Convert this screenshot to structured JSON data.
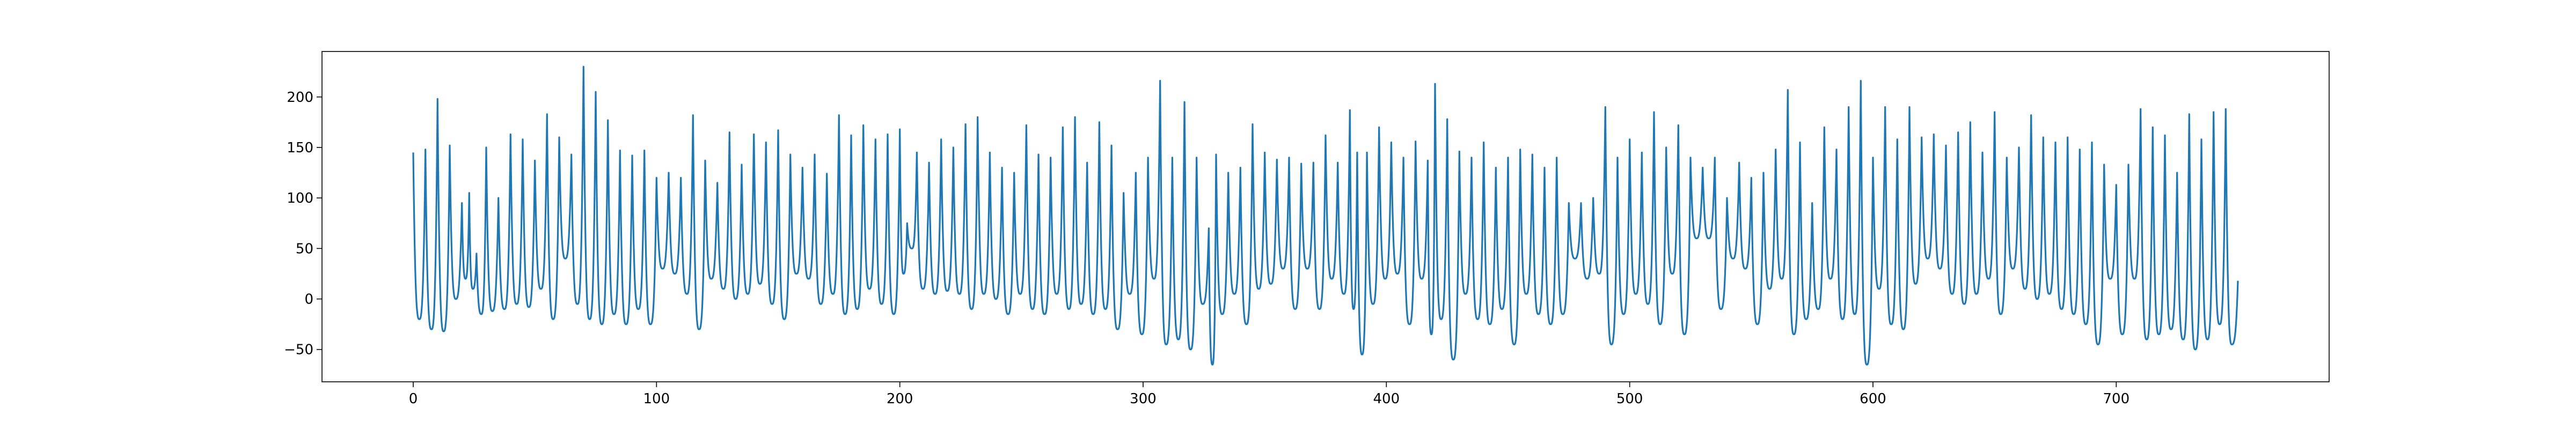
{
  "chart_data": {
    "type": "line",
    "title": "",
    "xlabel": "",
    "ylabel": "",
    "xlim": [
      -37.5,
      787.5
    ],
    "ylim": [
      -82,
      245
    ],
    "x_ticks": [
      0,
      100,
      200,
      300,
      400,
      500,
      600,
      700
    ],
    "x_tick_labels": [
      "0",
      "100",
      "200",
      "300",
      "400",
      "500",
      "600",
      "700"
    ],
    "y_ticks": [
      -50,
      0,
      50,
      100,
      150,
      200
    ],
    "y_tick_labels": [
      "−50",
      "0",
      "50",
      "100",
      "150",
      "200"
    ],
    "grid": false,
    "legend": "none",
    "series": [
      {
        "color": "#1f77b4",
        "peaks": [
          [
            0,
            145,
            -20
          ],
          [
            5,
            148,
            -30
          ],
          [
            10,
            198,
            -32
          ],
          [
            15,
            152,
            0
          ],
          [
            20,
            95,
            20
          ],
          [
            23,
            105,
            10
          ],
          [
            26,
            45,
            -15
          ],
          [
            30,
            150,
            -12
          ],
          [
            35,
            100,
            -10
          ],
          [
            40,
            163,
            -5
          ],
          [
            45,
            158,
            -8
          ],
          [
            50,
            137,
            10
          ],
          [
            55,
            183,
            -20
          ],
          [
            60,
            160,
            40
          ],
          [
            65,
            143,
            -5
          ],
          [
            70,
            230,
            -20
          ],
          [
            75,
            205,
            -25
          ],
          [
            80,
            177,
            -15
          ],
          [
            85,
            147,
            -25
          ],
          [
            90,
            142,
            -10
          ],
          [
            95,
            147,
            -25
          ],
          [
            100,
            120,
            30
          ],
          [
            105,
            125,
            25
          ],
          [
            110,
            120,
            5
          ],
          [
            115,
            182,
            -30
          ],
          [
            120,
            137,
            20
          ],
          [
            125,
            115,
            10
          ],
          [
            130,
            165,
            0
          ],
          [
            135,
            133,
            5
          ],
          [
            140,
            163,
            15
          ],
          [
            145,
            155,
            -5
          ],
          [
            150,
            167,
            -20
          ],
          [
            155,
            143,
            25
          ],
          [
            160,
            130,
            20
          ],
          [
            165,
            143,
            -5
          ],
          [
            170,
            124,
            5
          ],
          [
            175,
            182,
            -15
          ],
          [
            180,
            162,
            -10
          ],
          [
            185,
            172,
            10
          ],
          [
            190,
            158,
            -5
          ],
          [
            195,
            163,
            -15
          ],
          [
            200,
            168,
            25
          ],
          [
            203,
            75,
            50
          ],
          [
            207,
            145,
            10
          ],
          [
            212,
            135,
            5
          ],
          [
            217,
            158,
            8
          ],
          [
            222,
            150,
            5
          ],
          [
            227,
            173,
            -10
          ],
          [
            232,
            180,
            5
          ],
          [
            237,
            145,
            0
          ],
          [
            242,
            130,
            -15
          ],
          [
            247,
            125,
            5
          ],
          [
            252,
            172,
            -10
          ],
          [
            257,
            143,
            -15
          ],
          [
            262,
            140,
            5
          ],
          [
            267,
            170,
            -10
          ],
          [
            272,
            180,
            -5
          ],
          [
            277,
            135,
            -15
          ],
          [
            282,
            175,
            -10
          ],
          [
            287,
            152,
            -30
          ],
          [
            292,
            105,
            5
          ],
          [
            297,
            125,
            -35
          ],
          [
            302,
            140,
            20
          ],
          [
            307,
            216,
            -45
          ],
          [
            312,
            140,
            -40
          ],
          [
            317,
            195,
            -50
          ],
          [
            322,
            140,
            -5
          ],
          [
            327,
            70,
            -65
          ],
          [
            330,
            143,
            -15
          ],
          [
            335,
            125,
            5
          ],
          [
            340,
            130,
            -25
          ],
          [
            345,
            173,
            10
          ],
          [
            350,
            145,
            15
          ],
          [
            355,
            138,
            30
          ],
          [
            360,
            140,
            -10
          ],
          [
            365,
            134,
            30
          ],
          [
            370,
            135,
            -10
          ],
          [
            375,
            162,
            20
          ],
          [
            380,
            135,
            5
          ],
          [
            385,
            187,
            -10
          ],
          [
            388,
            145,
            -55
          ],
          [
            392,
            145,
            -5
          ],
          [
            397,
            170,
            20
          ],
          [
            402,
            155,
            25
          ],
          [
            407,
            140,
            -25
          ],
          [
            412,
            156,
            20
          ],
          [
            417,
            137,
            -35
          ],
          [
            420,
            213,
            -20
          ],
          [
            425,
            178,
            -60
          ],
          [
            430,
            146,
            5
          ],
          [
            435,
            140,
            -20
          ],
          [
            440,
            155,
            -25
          ],
          [
            445,
            130,
            -10
          ],
          [
            450,
            140,
            -45
          ],
          [
            455,
            148,
            5
          ],
          [
            460,
            143,
            -15
          ],
          [
            465,
            130,
            -25
          ],
          [
            470,
            140,
            -15
          ],
          [
            475,
            95,
            40
          ],
          [
            480,
            95,
            20
          ],
          [
            485,
            100,
            25
          ],
          [
            490,
            190,
            -45
          ],
          [
            495,
            140,
            -15
          ],
          [
            500,
            158,
            5
          ],
          [
            505,
            145,
            -5
          ],
          [
            510,
            185,
            -25
          ],
          [
            515,
            150,
            25
          ],
          [
            520,
            172,
            -35
          ],
          [
            525,
            140,
            60
          ],
          [
            530,
            130,
            60
          ],
          [
            535,
            140,
            -10
          ],
          [
            540,
            100,
            40
          ],
          [
            545,
            135,
            30
          ],
          [
            550,
            120,
            -25
          ],
          [
            555,
            125,
            10
          ],
          [
            560,
            148,
            20
          ],
          [
            565,
            207,
            -35
          ],
          [
            570,
            155,
            -20
          ],
          [
            575,
            95,
            -10
          ],
          [
            580,
            170,
            20
          ],
          [
            585,
            148,
            -20
          ],
          [
            590,
            190,
            -15
          ],
          [
            595,
            216,
            -65
          ],
          [
            600,
            140,
            10
          ],
          [
            605,
            190,
            -25
          ],
          [
            610,
            158,
            -30
          ],
          [
            615,
            190,
            15
          ],
          [
            620,
            160,
            40
          ],
          [
            625,
            163,
            30
          ],
          [
            630,
            152,
            5
          ],
          [
            635,
            165,
            -5
          ],
          [
            640,
            175,
            5
          ],
          [
            645,
            145,
            20
          ],
          [
            650,
            185,
            -15
          ],
          [
            655,
            140,
            30
          ],
          [
            660,
            150,
            10
          ],
          [
            665,
            182,
            0
          ],
          [
            670,
            160,
            5
          ],
          [
            675,
            155,
            -10
          ],
          [
            680,
            160,
            -15
          ],
          [
            685,
            148,
            -25
          ],
          [
            690,
            155,
            -45
          ],
          [
            695,
            133,
            20
          ],
          [
            700,
            113,
            -35
          ],
          [
            705,
            133,
            20
          ],
          [
            710,
            188,
            -40
          ],
          [
            715,
            170,
            -35
          ],
          [
            720,
            162,
            -30
          ],
          [
            725,
            125,
            -40
          ],
          [
            730,
            183,
            -50
          ],
          [
            735,
            158,
            -40
          ],
          [
            740,
            185,
            -25
          ],
          [
            745,
            188,
            -45
          ],
          [
            750,
            18,
            10
          ]
        ]
      }
    ]
  }
}
